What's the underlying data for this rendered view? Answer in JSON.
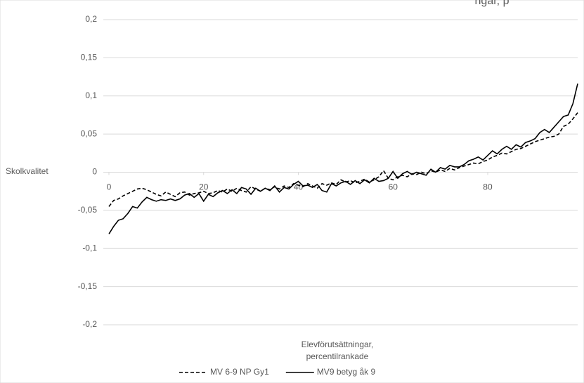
{
  "chart_data": {
    "type": "line",
    "title": "ngar, p",
    "ylabel": "Skolkvalitet",
    "xlabel": [
      "Elevförutsättningar,",
      "percentilrankade"
    ],
    "x": [
      0,
      1,
      2,
      3,
      4,
      5,
      6,
      7,
      8,
      9,
      10,
      11,
      12,
      13,
      14,
      15,
      16,
      17,
      18,
      19,
      20,
      21,
      22,
      23,
      24,
      25,
      26,
      27,
      28,
      29,
      30,
      31,
      32,
      33,
      34,
      35,
      36,
      37,
      38,
      39,
      40,
      41,
      42,
      43,
      44,
      45,
      46,
      47,
      48,
      49,
      50,
      51,
      52,
      53,
      54,
      55,
      56,
      57,
      58,
      59,
      60,
      61,
      62,
      63,
      64,
      65,
      66,
      67,
      68,
      69,
      70,
      71,
      72,
      73,
      74,
      75,
      76,
      77,
      78,
      79,
      80,
      81,
      82,
      83,
      84,
      85,
      86,
      87,
      88,
      89,
      90,
      91,
      92,
      93,
      94,
      95,
      96,
      97,
      98,
      99
    ],
    "xlim": [
      0,
      99
    ],
    "xticks": [
      0,
      20,
      40,
      60,
      80
    ],
    "ylim": [
      -0.2,
      0.2
    ],
    "yticks": [
      {
        "value": -0.2,
        "label": "-0,2"
      },
      {
        "value": -0.15,
        "label": "-0,15"
      },
      {
        "value": -0.1,
        "label": "-0,1"
      },
      {
        "value": -0.05,
        "label": "-0,05"
      },
      0,
      {
        "value": 0.05,
        "label": "0,05"
      },
      {
        "value": 0.1,
        "label": "0,1"
      },
      {
        "value": 0.15,
        "label": "0,15"
      },
      {
        "value": 0.2,
        "label": "0,2"
      }
    ],
    "grid": true,
    "series": [
      {
        "name": "MV 6-9 NP Gy1",
        "color": "#000000",
        "dash": true,
        "values": [
          -0.045,
          -0.037,
          -0.035,
          -0.031,
          -0.028,
          -0.025,
          -0.022,
          -0.021,
          -0.023,
          -0.026,
          -0.029,
          -0.031,
          -0.026,
          -0.029,
          -0.032,
          -0.027,
          -0.026,
          -0.03,
          -0.028,
          -0.027,
          -0.025,
          -0.028,
          -0.027,
          -0.024,
          -0.026,
          -0.022,
          -0.025,
          -0.021,
          -0.024,
          -0.026,
          -0.019,
          -0.022,
          -0.025,
          -0.021,
          -0.023,
          -0.019,
          -0.022,
          -0.018,
          -0.02,
          -0.015,
          -0.017,
          -0.019,
          -0.015,
          -0.018,
          -0.021,
          -0.015,
          -0.017,
          -0.014,
          -0.016,
          -0.01,
          -0.013,
          -0.011,
          -0.014,
          -0.012,
          -0.009,
          -0.013,
          -0.01,
          -0.006,
          0.002,
          -0.008,
          -0.01,
          -0.006,
          -0.004,
          -0.006,
          -0.002,
          -0.003,
          0.0,
          -0.002,
          0.002,
          0.0,
          0.003,
          0.001,
          0.005,
          0.003,
          0.006,
          0.008,
          0.01,
          0.012,
          0.011,
          0.014,
          0.016,
          0.02,
          0.022,
          0.025,
          0.024,
          0.027,
          0.03,
          0.031,
          0.034,
          0.037,
          0.04,
          0.042,
          0.044,
          0.046,
          0.047,
          0.05,
          0.06,
          0.063,
          0.07,
          0.078
        ]
      },
      {
        "name": "MV9 betyg åk 9",
        "color": "#000000",
        "dash": false,
        "values": [
          -0.081,
          -0.071,
          -0.063,
          -0.061,
          -0.054,
          -0.045,
          -0.047,
          -0.039,
          -0.033,
          -0.036,
          -0.038,
          -0.036,
          -0.037,
          -0.035,
          -0.037,
          -0.035,
          -0.03,
          -0.028,
          -0.033,
          -0.028,
          -0.038,
          -0.029,
          -0.032,
          -0.027,
          -0.024,
          -0.028,
          -0.023,
          -0.028,
          -0.02,
          -0.022,
          -0.029,
          -0.021,
          -0.025,
          -0.021,
          -0.024,
          -0.018,
          -0.026,
          -0.02,
          -0.022,
          -0.016,
          -0.012,
          -0.018,
          -0.017,
          -0.02,
          -0.016,
          -0.024,
          -0.026,
          -0.015,
          -0.018,
          -0.014,
          -0.012,
          -0.016,
          -0.011,
          -0.015,
          -0.01,
          -0.014,
          -0.008,
          -0.012,
          -0.011,
          -0.008,
          0.001,
          -0.008,
          -0.002,
          0.001,
          -0.003,
          0.0,
          -0.002,
          -0.004,
          0.004,
          0.0,
          0.006,
          0.004,
          0.009,
          0.007,
          0.007,
          0.01,
          0.015,
          0.017,
          0.02,
          0.016,
          0.022,
          0.028,
          0.024,
          0.03,
          0.034,
          0.03,
          0.036,
          0.033,
          0.039,
          0.041,
          0.044,
          0.052,
          0.056,
          0.052,
          0.059,
          0.066,
          0.073,
          0.075,
          0.09,
          0.116
        ]
      }
    ]
  }
}
